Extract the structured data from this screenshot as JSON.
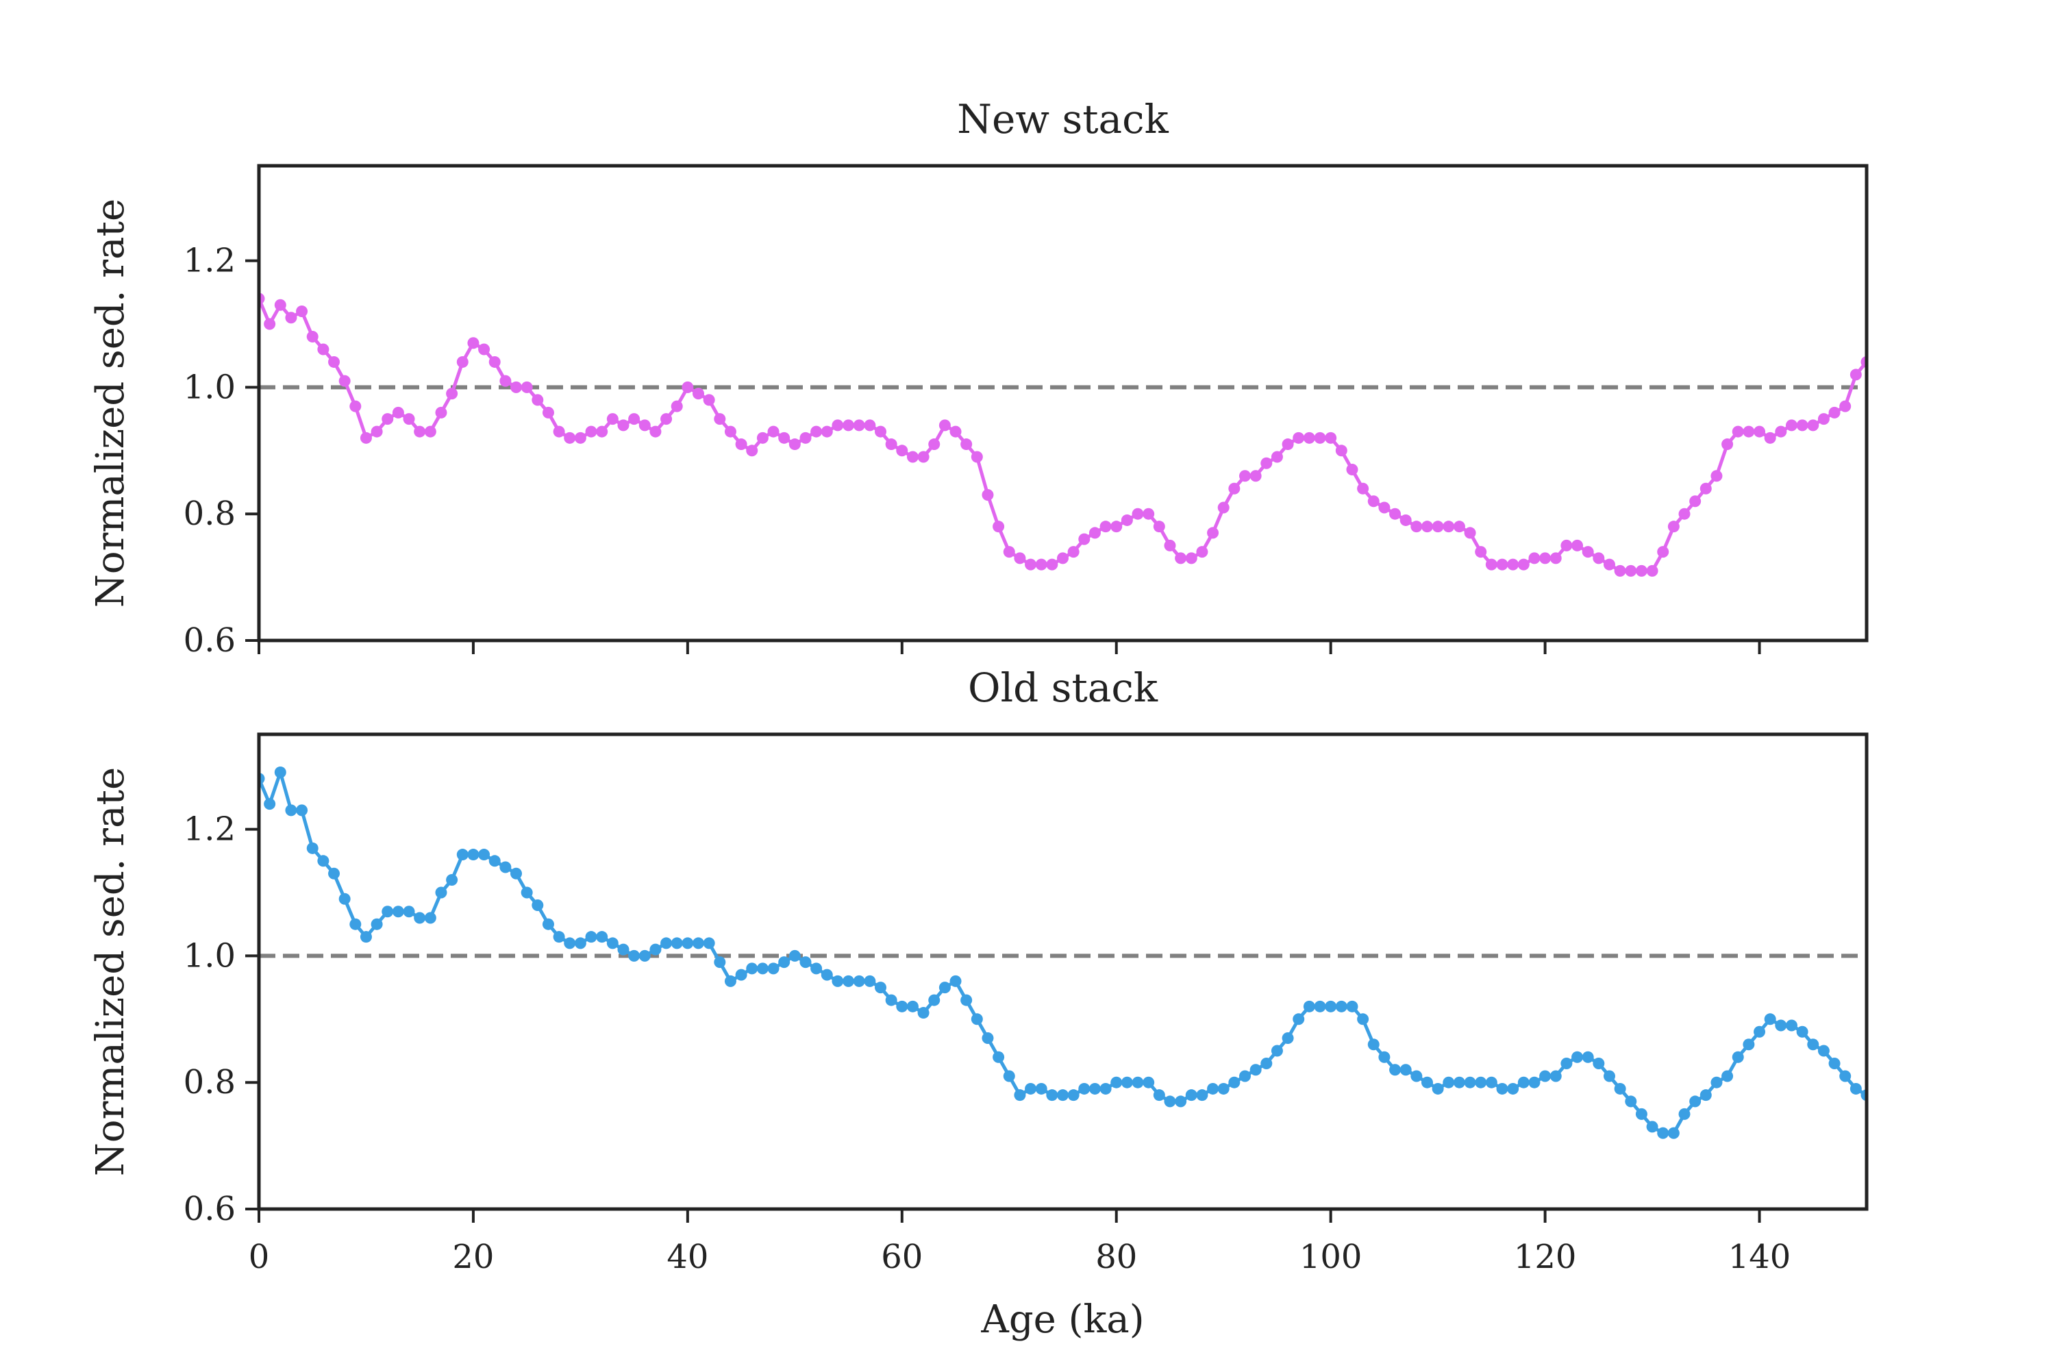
{
  "chart_data": [
    {
      "type": "line",
      "title": "New stack",
      "xlabel": "",
      "ylabel": "Normalized sed. rate",
      "xlim": [
        0,
        150
      ],
      "ylim": [
        0.6,
        1.35
      ],
      "xticks": [
        0,
        20,
        40,
        60,
        80,
        100,
        120,
        140
      ],
      "yticks": [
        0.6,
        0.8,
        1.0,
        1.2
      ],
      "ytick_labels": [
        "0.6",
        "0.8",
        "1.0",
        "1.2"
      ],
      "xtick_labels_visible": false,
      "reference_line": {
        "y": 1.0,
        "style": "dashed",
        "color": "#808080"
      },
      "grid": false,
      "series": [
        {
          "color": "#e066ef",
          "marker": "dot",
          "x": [
            0,
            1,
            2,
            3,
            4,
            5,
            6,
            7,
            8,
            9,
            10,
            11,
            12,
            13,
            14,
            15,
            16,
            17,
            18,
            19,
            20,
            21,
            22,
            23,
            24,
            25,
            26,
            27,
            28,
            29,
            30,
            31,
            32,
            33,
            34,
            35,
            36,
            37,
            38,
            39,
            40,
            41,
            42,
            43,
            44,
            45,
            46,
            47,
            48,
            49,
            50,
            51,
            52,
            53,
            54,
            55,
            56,
            57,
            58,
            59,
            60,
            61,
            62,
            63,
            64,
            65,
            66,
            67,
            68,
            69,
            70,
            71,
            72,
            73,
            74,
            75,
            76,
            77,
            78,
            79,
            80,
            81,
            82,
            83,
            84,
            85,
            86,
            87,
            88,
            89,
            90,
            91,
            92,
            93,
            94,
            95,
            96,
            97,
            98,
            99,
            100,
            101,
            102,
            103,
            104,
            105,
            106,
            107,
            108,
            109,
            110,
            111,
            112,
            113,
            114,
            115,
            116,
            117,
            118,
            119,
            120,
            121,
            122,
            123,
            124,
            125,
            126,
            127,
            128,
            129,
            130,
            131,
            132,
            133,
            134,
            135,
            136,
            137,
            138,
            139,
            140,
            141,
            142,
            143,
            144,
            145,
            146,
            147,
            148,
            149,
            150
          ],
          "y": [
            1.14,
            1.1,
            1.13,
            1.11,
            1.12,
            1.08,
            1.06,
            1.04,
            1.01,
            0.97,
            0.92,
            0.93,
            0.95,
            0.96,
            0.95,
            0.93,
            0.93,
            0.96,
            0.99,
            1.04,
            1.07,
            1.06,
            1.04,
            1.01,
            1.0,
            1.0,
            0.98,
            0.96,
            0.93,
            0.92,
            0.92,
            0.93,
            0.93,
            0.95,
            0.94,
            0.95,
            0.94,
            0.93,
            0.95,
            0.97,
            1.0,
            0.99,
            0.98,
            0.95,
            0.93,
            0.91,
            0.9,
            0.92,
            0.93,
            0.92,
            0.91,
            0.92,
            0.93,
            0.93,
            0.94,
            0.94,
            0.94,
            0.94,
            0.93,
            0.91,
            0.9,
            0.89,
            0.89,
            0.91,
            0.94,
            0.93,
            0.91,
            0.89,
            0.83,
            0.78,
            0.74,
            0.73,
            0.72,
            0.72,
            0.72,
            0.73,
            0.74,
            0.76,
            0.77,
            0.78,
            0.78,
            0.79,
            0.8,
            0.8,
            0.78,
            0.75,
            0.73,
            0.73,
            0.74,
            0.77,
            0.81,
            0.84,
            0.86,
            0.86,
            0.88,
            0.89,
            0.91,
            0.92,
            0.92,
            0.92,
            0.92,
            0.9,
            0.87,
            0.84,
            0.82,
            0.81,
            0.8,
            0.79,
            0.78,
            0.78,
            0.78,
            0.78,
            0.78,
            0.77,
            0.74,
            0.72,
            0.72,
            0.72,
            0.72,
            0.73,
            0.73,
            0.73,
            0.75,
            0.75,
            0.74,
            0.73,
            0.72,
            0.71,
            0.71,
            0.71,
            0.71,
            0.74,
            0.78,
            0.8,
            0.82,
            0.84,
            0.86,
            0.91,
            0.93,
            0.93,
            0.93,
            0.92,
            0.93,
            0.94,
            0.94,
            0.94,
            0.95,
            0.96,
            0.97,
            1.02,
            1.04
          ]
        }
      ]
    },
    {
      "type": "line",
      "title": "Old stack",
      "xlabel": "Age (ka)",
      "ylabel": "Normalized sed. rate",
      "xlim": [
        0,
        150
      ],
      "ylim": [
        0.6,
        1.35
      ],
      "xticks": [
        0,
        20,
        40,
        60,
        80,
        100,
        120,
        140
      ],
      "xtick_labels": [
        "0",
        "20",
        "40",
        "60",
        "80",
        "100",
        "120",
        "140"
      ],
      "yticks": [
        0.6,
        0.8,
        1.0,
        1.2
      ],
      "ytick_labels": [
        "0.6",
        "0.8",
        "1.0",
        "1.2"
      ],
      "reference_line": {
        "y": 1.0,
        "style": "dashed",
        "color": "#808080"
      },
      "grid": false,
      "series": [
        {
          "color": "#3b9fe3",
          "marker": "dot",
          "x": [
            0,
            1,
            2,
            3,
            4,
            5,
            6,
            7,
            8,
            9,
            10,
            11,
            12,
            13,
            14,
            15,
            16,
            17,
            18,
            19,
            20,
            21,
            22,
            23,
            24,
            25,
            26,
            27,
            28,
            29,
            30,
            31,
            32,
            33,
            34,
            35,
            36,
            37,
            38,
            39,
            40,
            41,
            42,
            43,
            44,
            45,
            46,
            47,
            48,
            49,
            50,
            51,
            52,
            53,
            54,
            55,
            56,
            57,
            58,
            59,
            60,
            61,
            62,
            63,
            64,
            65,
            66,
            67,
            68,
            69,
            70,
            71,
            72,
            73,
            74,
            75,
            76,
            77,
            78,
            79,
            80,
            81,
            82,
            83,
            84,
            85,
            86,
            87,
            88,
            89,
            90,
            91,
            92,
            93,
            94,
            95,
            96,
            97,
            98,
            99,
            100,
            101,
            102,
            103,
            104,
            105,
            106,
            107,
            108,
            109,
            110,
            111,
            112,
            113,
            114,
            115,
            116,
            117,
            118,
            119,
            120,
            121,
            122,
            123,
            124,
            125,
            126,
            127,
            128,
            129,
            130,
            131,
            132,
            133,
            134,
            135,
            136,
            137,
            138,
            139,
            140,
            141,
            142,
            143,
            144,
            145,
            146,
            147,
            148,
            149,
            150
          ],
          "y": [
            1.28,
            1.24,
            1.29,
            1.23,
            1.23,
            1.17,
            1.15,
            1.13,
            1.09,
            1.05,
            1.03,
            1.05,
            1.07,
            1.07,
            1.07,
            1.06,
            1.06,
            1.1,
            1.12,
            1.16,
            1.16,
            1.16,
            1.15,
            1.14,
            1.13,
            1.1,
            1.08,
            1.05,
            1.03,
            1.02,
            1.02,
            1.03,
            1.03,
            1.02,
            1.01,
            1.0,
            1.0,
            1.01,
            1.02,
            1.02,
            1.02,
            1.02,
            1.02,
            0.99,
            0.96,
            0.97,
            0.98,
            0.98,
            0.98,
            0.99,
            1.0,
            0.99,
            0.98,
            0.97,
            0.96,
            0.96,
            0.96,
            0.96,
            0.95,
            0.93,
            0.92,
            0.92,
            0.91,
            0.93,
            0.95,
            0.96,
            0.93,
            0.9,
            0.87,
            0.84,
            0.81,
            0.78,
            0.79,
            0.79,
            0.78,
            0.78,
            0.78,
            0.79,
            0.79,
            0.79,
            0.8,
            0.8,
            0.8,
            0.8,
            0.78,
            0.77,
            0.77,
            0.78,
            0.78,
            0.79,
            0.79,
            0.8,
            0.81,
            0.82,
            0.83,
            0.85,
            0.87,
            0.9,
            0.92,
            0.92,
            0.92,
            0.92,
            0.92,
            0.9,
            0.86,
            0.84,
            0.82,
            0.82,
            0.81,
            0.8,
            0.79,
            0.8,
            0.8,
            0.8,
            0.8,
            0.8,
            0.79,
            0.79,
            0.8,
            0.8,
            0.81,
            0.81,
            0.83,
            0.84,
            0.84,
            0.83,
            0.81,
            0.79,
            0.77,
            0.75,
            0.73,
            0.72,
            0.72,
            0.75,
            0.77,
            0.78,
            0.8,
            0.81,
            0.84,
            0.86,
            0.88,
            0.9,
            0.89,
            0.89,
            0.88,
            0.86,
            0.85,
            0.83,
            0.81,
            0.79,
            0.78
          ]
        }
      ]
    }
  ]
}
